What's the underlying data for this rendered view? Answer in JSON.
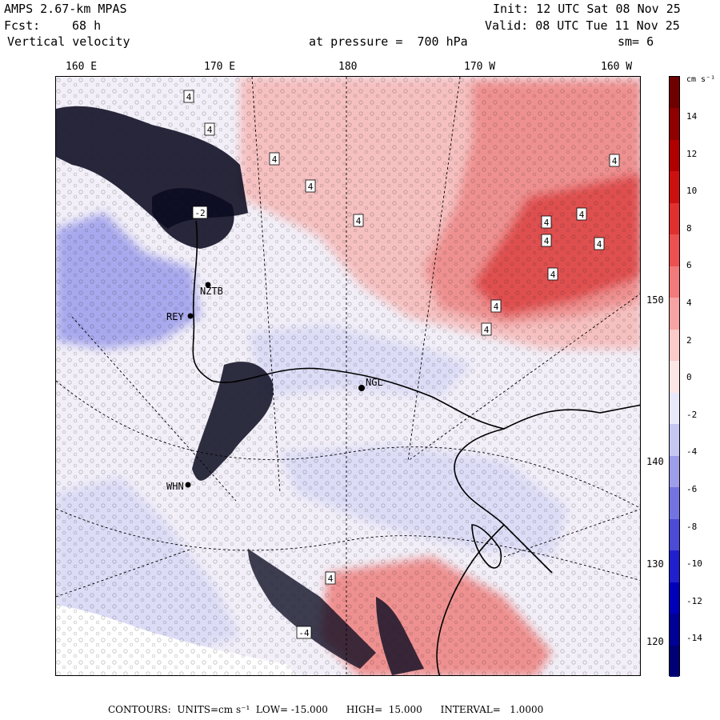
{
  "header": {
    "model": "AMPS 2.67-km MPAS",
    "fcst_label": "Fcst:",
    "fcst_value": "68 h",
    "field": "Vertical velocity",
    "init": "Init: 12 UTC Sat 08 Nov 25",
    "valid": "Valid: 08 UTC Tue 11 Nov 25",
    "pressure": "at pressure =  700 hPa",
    "smoothing": "sm= 6"
  },
  "longitude_labels": [
    "160 E",
    "170 E",
    "180",
    "170 W",
    "160 W"
  ],
  "latitude_labels": [
    "150 W",
    "140 W",
    "130 W",
    "120 W"
  ],
  "stations": [
    "NZTB",
    "REY",
    "NGL",
    "WHN"
  ],
  "contour_marks": [
    "4",
    "4",
    "4",
    "4",
    "4",
    "4",
    "4",
    "4",
    "4",
    "4",
    "4",
    "4",
    "4",
    "4",
    "-4",
    "-2"
  ],
  "colorbar": {
    "units": "cm s⁻¹",
    "ticks": [
      "14",
      "12",
      "10",
      "8",
      "6",
      "4",
      "2",
      "0",
      "-2",
      "-4",
      "-6",
      "-8",
      "-10",
      "-12",
      "-14"
    ],
    "colors": [
      "#6e0000",
      "#8f0000",
      "#b00000",
      "#cc1010",
      "#e03030",
      "#ec5050",
      "#f27a7a",
      "#f7a3a3",
      "#fbcaca",
      "#fde6e6",
      "#e8e8fb",
      "#c6c6f3",
      "#9d9dea",
      "#7474e0",
      "#4b4bd6",
      "#2020cc",
      "#0000b8",
      "#000096",
      "#000074"
    ]
  },
  "footer": {
    "text": "CONTOURS:  UNITS=cm s⁻¹  LOW= -15.000      HIGH=  15.000      INTERVAL=   1.0000"
  },
  "palette": {
    "land_red_light": "#f6c0c0",
    "land_red_mid": "#ef9090",
    "land_red_strong": "#e05050",
    "blue_light": "#dcdcf6",
    "blue_mid": "#a8a8ee",
    "blue_dark": "#1e1ec8",
    "neutral": "#f2eff8"
  }
}
